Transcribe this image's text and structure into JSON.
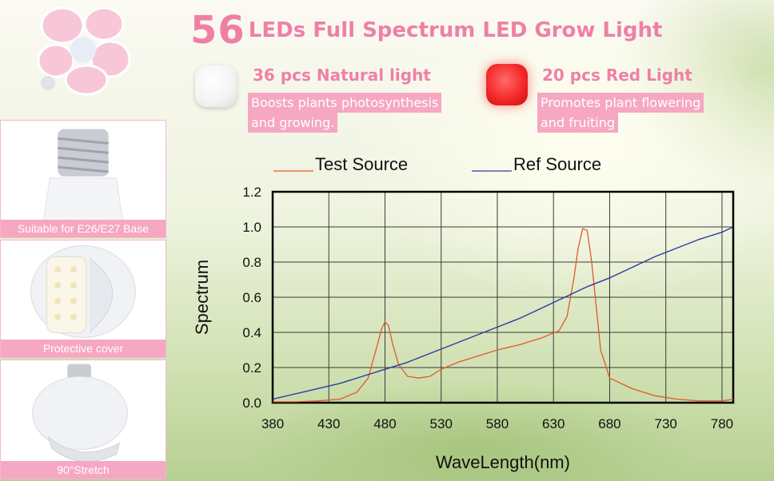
{
  "title": {
    "number": "56",
    "text": "LEDs Full Spectrum LED Grow Light"
  },
  "natural_light": {
    "heading": "36 pcs Natural light",
    "desc_line1": "Boosts plants photosynthesis",
    "desc_line2": "and growing.",
    "color": "#f3f3f3"
  },
  "red_light": {
    "heading": "20 pcs Red Light",
    "desc_line1": "Promotes plant flowering",
    "desc_line2": "and fruiting",
    "color": "#f42a2a"
  },
  "panels": [
    {
      "caption": "Suitable for E26/E27 Base"
    },
    {
      "caption": "Protective cover"
    },
    {
      "caption": "90°Stretch"
    }
  ],
  "colors": {
    "accent_pink": "#f07fa6",
    "caption_pink": "#f6a7c2",
    "test_series": "#e05a2a",
    "ref_series": "#2a3aa0"
  },
  "chart_data": {
    "type": "line",
    "xlabel": "WaveLength(nm)",
    "ylabel": "Spectrum",
    "xlim": [
      380,
      790
    ],
    "ylim": [
      0,
      1.2
    ],
    "x_ticks": [
      "380",
      "430",
      "480",
      "530",
      "580",
      "630",
      "680",
      "730",
      "780"
    ],
    "y_ticks": [
      "0.0",
      "0.2",
      "0.4",
      "0.6",
      "0.8",
      "1.0",
      "1.2"
    ],
    "grid": true,
    "legend_position": "top",
    "series": [
      {
        "name": "Test Source",
        "color": "#e05a2a",
        "x": [
          380,
          400,
          420,
          440,
          455,
          465,
          472,
          477,
          480,
          483,
          487,
          492,
          500,
          510,
          520,
          530,
          545,
          560,
          580,
          600,
          620,
          635,
          642,
          648,
          652,
          656,
          660,
          664,
          668,
          672,
          680,
          700,
          720,
          740,
          760,
          780,
          790
        ],
        "y": [
          0.005,
          0.005,
          0.01,
          0.02,
          0.06,
          0.14,
          0.3,
          0.42,
          0.46,
          0.44,
          0.33,
          0.22,
          0.15,
          0.14,
          0.15,
          0.19,
          0.23,
          0.26,
          0.3,
          0.33,
          0.37,
          0.41,
          0.49,
          0.7,
          0.88,
          0.99,
          0.98,
          0.8,
          0.55,
          0.3,
          0.14,
          0.08,
          0.04,
          0.02,
          0.01,
          0.01,
          0.02
        ]
      },
      {
        "name": "Ref Source",
        "color": "#2a3aa0",
        "x": [
          380,
          400,
          420,
          440,
          460,
          480,
          500,
          520,
          540,
          560,
          580,
          600,
          620,
          640,
          660,
          680,
          700,
          720,
          740,
          760,
          780,
          790
        ],
        "y": [
          0.02,
          0.05,
          0.08,
          0.11,
          0.15,
          0.19,
          0.23,
          0.28,
          0.33,
          0.38,
          0.43,
          0.48,
          0.54,
          0.6,
          0.66,
          0.71,
          0.77,
          0.83,
          0.88,
          0.93,
          0.97,
          1.0
        ]
      }
    ]
  }
}
